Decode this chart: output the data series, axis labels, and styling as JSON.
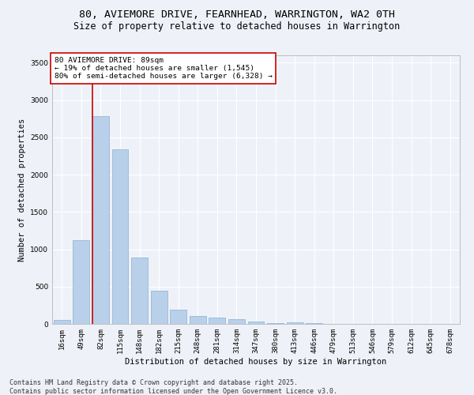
{
  "title_line1": "80, AVIEMORE DRIVE, FEARNHEAD, WARRINGTON, WA2 0TH",
  "title_line2": "Size of property relative to detached houses in Warrington",
  "xlabel": "Distribution of detached houses by size in Warrington",
  "ylabel": "Number of detached properties",
  "categories": [
    "16sqm",
    "49sqm",
    "82sqm",
    "115sqm",
    "148sqm",
    "182sqm",
    "215sqm",
    "248sqm",
    "281sqm",
    "314sqm",
    "347sqm",
    "380sqm",
    "413sqm",
    "446sqm",
    "479sqm",
    "513sqm",
    "546sqm",
    "579sqm",
    "612sqm",
    "645sqm",
    "678sqm"
  ],
  "values": [
    50,
    1120,
    2780,
    2340,
    890,
    450,
    190,
    110,
    85,
    65,
    35,
    15,
    20,
    10,
    5,
    5,
    2,
    2,
    1,
    1,
    1
  ],
  "bar_color": "#b8d0ea",
  "bar_edge_color": "#8ab0d0",
  "vline_color": "#cc0000",
  "annotation_text": "80 AVIEMORE DRIVE: 89sqm\n← 19% of detached houses are smaller (1,545)\n80% of semi-detached houses are larger (6,328) →",
  "annotation_box_color": "#ffffff",
  "annotation_box_edge": "#cc0000",
  "ylim": [
    0,
    3600
  ],
  "yticks": [
    0,
    500,
    1000,
    1500,
    2000,
    2500,
    3000,
    3500
  ],
  "background_color": "#eef2f8",
  "grid_color": "#ffffff",
  "footer_line1": "Contains HM Land Registry data © Crown copyright and database right 2025.",
  "footer_line2": "Contains public sector information licensed under the Open Government Licence v3.0.",
  "title_fontsize": 9.5,
  "subtitle_fontsize": 8.5,
  "axis_label_fontsize": 7.5,
  "tick_fontsize": 6.5,
  "annotation_fontsize": 6.8,
  "footer_fontsize": 6.0
}
